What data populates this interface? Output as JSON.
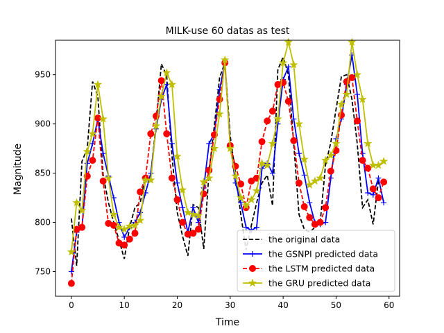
{
  "chart_data": {
    "type": "line",
    "title": "MILK-use 60 datas as test",
    "xlabel": "Time",
    "ylabel": "Magnitude",
    "xlim": [
      -3,
      62
    ],
    "ylim": [
      725,
      985
    ],
    "xticks": [
      0,
      10,
      20,
      30,
      40,
      50,
      60
    ],
    "yticks": [
      750,
      800,
      850,
      900,
      950
    ],
    "grid": false,
    "legend": "lower-right",
    "x": [
      0,
      1,
      2,
      3,
      4,
      5,
      6,
      7,
      8,
      9,
      10,
      11,
      12,
      13,
      14,
      15,
      16,
      17,
      18,
      19,
      20,
      21,
      22,
      23,
      24,
      25,
      26,
      27,
      28,
      29,
      30,
      31,
      32,
      33,
      34,
      35,
      36,
      37,
      38,
      39,
      40,
      41,
      42,
      43,
      44,
      45,
      46,
      47,
      48,
      49,
      50,
      51,
      52,
      53,
      54,
      55,
      56,
      57,
      58,
      59
    ],
    "series": [
      {
        "name": "the original data",
        "color": "#000000",
        "style": "dashed",
        "marker": "none",
        "values": [
          804,
          756,
          862,
          875,
          943,
          928,
          848,
          820,
          800,
          782,
          763,
          795,
          815,
          820,
          847,
          848,
          900,
          961,
          949,
          868,
          810,
          786,
          766,
          818,
          815,
          773,
          851,
          898,
          947,
          962,
          888,
          850,
          808,
          772,
          797,
          820,
          840,
          848,
          817,
          955,
          968,
          950,
          880,
          808,
          793,
          790,
          795,
          800,
          858,
          881,
          915,
          948,
          950,
          925,
          880,
          815,
          823,
          798,
          842,
          840
        ]
      },
      {
        "name": "the GSNPI predicted data",
        "color": "#0000ff",
        "style": "solid",
        "marker": "plus",
        "values": [
          750,
          790,
          795,
          860,
          880,
          905,
          870,
          847,
          825,
          800,
          785,
          795,
          800,
          810,
          830,
          850,
          895,
          925,
          940,
          880,
          840,
          815,
          790,
          815,
          800,
          835,
          880,
          890,
          935,
          962,
          880,
          840,
          820,
          795,
          792,
          795,
          855,
          860,
          850,
          900,
          945,
          958,
          905,
          870,
          848,
          820,
          800,
          798,
          800,
          845,
          885,
          905,
          940,
          970,
          930,
          870,
          830,
          828,
          845,
          820
        ]
      },
      {
        "name": "the LSTM predicted data",
        "color": "#ff0000",
        "style": "dashed",
        "marker": "circle",
        "values": [
          738,
          793,
          795,
          847,
          863,
          906,
          842,
          799,
          797,
          779,
          777,
          783,
          789,
          831,
          845,
          890,
          908,
          944,
          890,
          845,
          823,
          800,
          788,
          789,
          793,
          829,
          853,
          889,
          925,
          962,
          878,
          857,
          839,
          815,
          842,
          845,
          882,
          903,
          913,
          940,
          942,
          923,
          883,
          840,
          816,
          805,
          798,
          800,
          815,
          852,
          873,
          909,
          943,
          947,
          903,
          863,
          855,
          834,
          825,
          841
        ]
      },
      {
        "name": "the GRU predicted data",
        "color": "#bfbf00",
        "style": "solid",
        "marker": "star",
        "values": [
          770,
          820,
          812,
          872,
          890,
          940,
          905,
          845,
          808,
          795,
          793,
          796,
          797,
          802,
          843,
          843,
          898,
          928,
          952,
          940,
          867,
          833,
          810,
          808,
          807,
          841,
          845,
          875,
          910,
          965,
          875,
          847,
          825,
          817,
          823,
          832,
          860,
          858,
          880,
          905,
          962,
          983,
          960,
          900,
          864,
          838,
          842,
          845,
          863,
          868,
          880,
          920,
          930,
          983,
          950,
          925,
          880,
          858,
          858,
          862
        ]
      }
    ]
  }
}
